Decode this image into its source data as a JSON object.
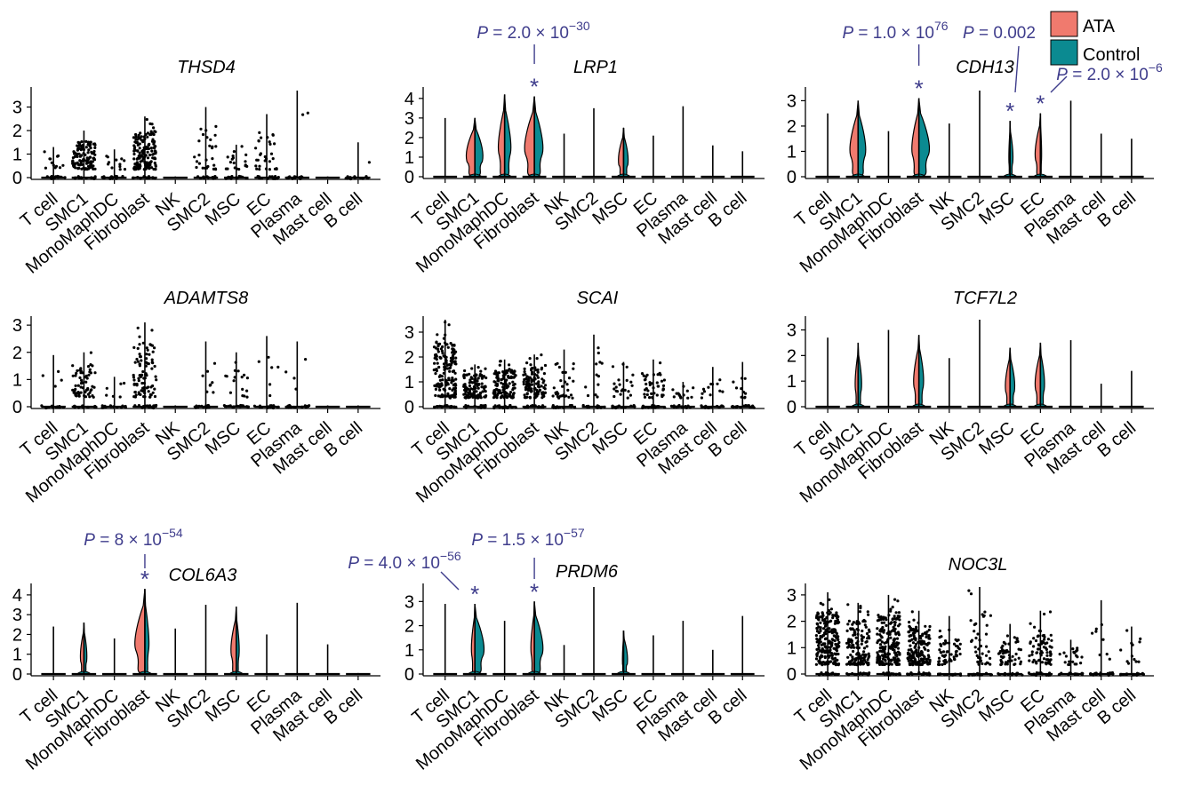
{
  "colors": {
    "ata": "#f07a6e",
    "control": "#0b8a91",
    "annotation": "#3f3d8c",
    "point": "#000000"
  },
  "legend": {
    "entries": [
      {
        "label": "ATA",
        "color": "#f07a6e"
      },
      {
        "label": "Control",
        "color": "#0b8a91"
      }
    ]
  },
  "chart_data": [
    {
      "type": "violin",
      "gene": "THSD4",
      "title": "THSD4",
      "categories": [
        "T cell",
        "SMC1",
        "MonoMaphDC",
        "Fibroblast",
        "NK",
        "SMC2",
        "MSC",
        "EC",
        "Plasma",
        "Mast cell",
        "B cell"
      ],
      "yticks": [
        0,
        1,
        2,
        3
      ],
      "ylim": [
        0,
        3.7
      ],
      "max": [
        1.3,
        2.0,
        1.2,
        2.6,
        0.05,
        3.0,
        1.4,
        2.7,
        3.7,
        0.05,
        1.5
      ],
      "ata_width": [
        0,
        0,
        0,
        0,
        0,
        0,
        0,
        0,
        0,
        0,
        0
      ],
      "control_width": [
        0,
        0,
        0,
        0,
        0,
        0,
        0,
        0,
        0,
        0,
        0
      ],
      "points": [
        12,
        120,
        12,
        150,
        0,
        28,
        18,
        30,
        2,
        0,
        1
      ],
      "annotations": []
    },
    {
      "type": "violin",
      "gene": "LRP1",
      "title": "LRP1",
      "categories": [
        "T cell",
        "SMC1",
        "MonoMaphDC",
        "Fibroblast",
        "NK",
        "SMC2",
        "MSC",
        "EC",
        "Plasma",
        "Mast cell",
        "B cell"
      ],
      "yticks": [
        0,
        1,
        2,
        3,
        4
      ],
      "ylim": [
        0,
        4.4
      ],
      "max": [
        3.0,
        3.0,
        4.2,
        4.1,
        2.2,
        3.5,
        2.5,
        2.1,
        3.6,
        1.6,
        1.3
      ],
      "ata_width": [
        0,
        0.75,
        0.55,
        0.85,
        0,
        0,
        0.45,
        0,
        0,
        0,
        0
      ],
      "control_width": [
        0,
        0.7,
        0.55,
        0.75,
        0,
        0,
        0.4,
        0,
        0,
        0,
        0
      ],
      "points": [
        0,
        0,
        0,
        0,
        0,
        0,
        0,
        0,
        0,
        0,
        0
      ],
      "annotations": [
        {
          "category": "Fibroblast",
          "italic_p": "P",
          "rest": " = 2.0 × 10",
          "exp": "−30"
        }
      ]
    },
    {
      "type": "violin",
      "gene": "CDH13",
      "title": "CDH13",
      "categories": [
        "T cell",
        "SMC1",
        "MonoMaphDC",
        "Fibroblast",
        "NK",
        "SMC2",
        "MSC",
        "EC",
        "Plasma",
        "Mast cell",
        "B cell"
      ],
      "yticks": [
        0,
        1,
        2,
        3
      ],
      "ylim": [
        0,
        3.4
      ],
      "max": [
        2.5,
        3.0,
        1.8,
        3.1,
        2.1,
        3.4,
        2.2,
        2.5,
        3.0,
        1.7,
        1.5
      ],
      "ata_width": [
        0,
        0.7,
        0,
        0.6,
        0,
        0,
        0.1,
        0.45,
        0,
        0,
        0
      ],
      "control_width": [
        0,
        0.65,
        0,
        0.9,
        0,
        0,
        0.25,
        0.1,
        0,
        0,
        0
      ],
      "points": [
        0,
        0,
        0,
        0,
        0,
        0,
        0,
        0,
        0,
        0,
        0
      ],
      "annotations": [
        {
          "category": "Fibroblast",
          "italic_p": "P",
          "rest": " = 1.0 × 10",
          "exp": "76"
        },
        {
          "category": "MSC",
          "italic_p": "P",
          "rest": " = 0.002",
          "exp": ""
        },
        {
          "category": "EC",
          "italic_p": "P",
          "rest": " = 2.0 × 10",
          "exp": "−6"
        }
      ]
    },
    {
      "type": "violin",
      "gene": "ADAMTS8",
      "title": "ADAMTS8",
      "categories": [
        "T cell",
        "SMC1",
        "MonoMaphDC",
        "Fibroblast",
        "NK",
        "SMC2",
        "MSC",
        "EC",
        "Plasma",
        "Mast cell",
        "B cell"
      ],
      "yticks": [
        0,
        1,
        2,
        3
      ],
      "ylim": [
        0,
        3.2
      ],
      "max": [
        1.9,
        2.0,
        1.1,
        3.1,
        0.05,
        2.4,
        2.0,
        2.6,
        2.4,
        0.05,
        0.05
      ],
      "ata_width": [
        0,
        0,
        0,
        0,
        0,
        0,
        0,
        0,
        0,
        0,
        0
      ],
      "control_width": [
        0,
        0,
        0,
        0,
        0,
        0,
        0,
        0,
        0,
        0,
        0
      ],
      "points": [
        4,
        60,
        6,
        90,
        0,
        8,
        16,
        6,
        4,
        0,
        0
      ],
      "annotations": []
    },
    {
      "type": "violin",
      "gene": "SCAI",
      "title": "SCAI",
      "categories": [
        "T cell",
        "SMC1",
        "MonoMaphDC",
        "Fibroblast",
        "NK",
        "SMC2",
        "MSC",
        "EC",
        "Plasma",
        "Mast cell",
        "B cell"
      ],
      "yticks": [
        0,
        1,
        2,
        3
      ],
      "ylim": [
        0,
        3.5
      ],
      "max": [
        3.5,
        1.7,
        1.9,
        2.1,
        2.3,
        2.9,
        1.8,
        1.9,
        1.0,
        1.6,
        1.8
      ],
      "ata_width": [
        0,
        0,
        0,
        0,
        0,
        0,
        0,
        0,
        0,
        0,
        0
      ],
      "control_width": [
        0,
        0,
        0,
        0,
        0,
        0,
        0,
        0,
        0,
        0,
        0
      ],
      "points": [
        160,
        110,
        130,
        110,
        30,
        12,
        22,
        40,
        14,
        12,
        10
      ],
      "annotations": []
    },
    {
      "type": "violin",
      "gene": "TCF7L2",
      "title": "TCF7L2",
      "categories": [
        "T cell",
        "SMC1",
        "MonoMaphDC",
        "Fibroblast",
        "NK",
        "SMC2",
        "MSC",
        "EC",
        "Plasma",
        "Mast cell",
        "B cell"
      ],
      "yticks": [
        0,
        1,
        2,
        3
      ],
      "ylim": [
        0,
        3.4
      ],
      "max": [
        2.7,
        2.5,
        3.0,
        2.8,
        1.9,
        3.4,
        2.3,
        2.5,
        2.6,
        0.9,
        1.4
      ],
      "ata_width": [
        0,
        0.25,
        0,
        0.45,
        0,
        0,
        0.4,
        0.45,
        0,
        0,
        0
      ],
      "control_width": [
        0,
        0.3,
        0,
        0.4,
        0,
        0,
        0.4,
        0.35,
        0,
        0,
        0
      ],
      "points": [
        0,
        0,
        0,
        0,
        0,
        0,
        0,
        0,
        0,
        0,
        0
      ],
      "annotations": []
    },
    {
      "type": "violin",
      "gene": "COL6A3",
      "title": "COL6A3",
      "categories": [
        "T cell",
        "SMC1",
        "MonoMaphDC",
        "Fibroblast",
        "NK",
        "SMC2",
        "MSC",
        "EC",
        "Plasma",
        "Mast cell",
        "B cell"
      ],
      "yticks": [
        0,
        1,
        2,
        3,
        4
      ],
      "ylim": [
        0,
        4.4
      ],
      "max": [
        2.4,
        2.6,
        1.8,
        4.3,
        2.3,
        3.5,
        3.4,
        2.0,
        3.6,
        1.5,
        0.05
      ],
      "ata_width": [
        0,
        0.3,
        0,
        0.85,
        0,
        0,
        0.45,
        0,
        0,
        0,
        0
      ],
      "control_width": [
        0,
        0.25,
        0,
        0.35,
        0,
        0,
        0.25,
        0,
        0,
        0,
        0
      ],
      "points": [
        0,
        0,
        0,
        0,
        0,
        0,
        0,
        0,
        0,
        0,
        0
      ],
      "annotations": [
        {
          "category": "Fibroblast",
          "italic_p": "P",
          "rest": " = 8 × 10",
          "exp": "−54"
        }
      ]
    },
    {
      "type": "violin",
      "gene": "PRDM6",
      "title": "PRDM6",
      "categories": [
        "T cell",
        "SMC1",
        "MonoMaphDC",
        "Fibroblast",
        "NK",
        "SMC2",
        "MSC",
        "EC",
        "Plasma",
        "Mast cell",
        "B cell"
      ],
      "yticks": [
        0,
        1,
        2,
        3
      ],
      "ylim": [
        0,
        3.6
      ],
      "max": [
        2.9,
        2.9,
        2.2,
        3.0,
        1.2,
        3.6,
        1.8,
        1.6,
        2.2,
        1.0,
        2.4
      ],
      "ata_width": [
        0,
        0.3,
        0,
        0.3,
        0,
        0,
        0.1,
        0,
        0,
        0,
        0
      ],
      "control_width": [
        0,
        0.8,
        0,
        0.75,
        0,
        0,
        0.35,
        0,
        0,
        0,
        0
      ],
      "points": [
        0,
        0,
        0,
        0,
        0,
        0,
        0,
        0,
        0,
        0,
        0
      ],
      "annotations": [
        {
          "category": "SMC1",
          "italic_p": "P",
          "rest": " = 4.0 × 10",
          "exp": "−56"
        },
        {
          "category": "Fibroblast",
          "italic_p": "P",
          "rest": " = 1.5 × 10",
          "exp": "−57"
        }
      ]
    },
    {
      "type": "violin",
      "gene": "NOC3L",
      "title": "NOC3L",
      "categories": [
        "T cell",
        "SMC1",
        "MonoMaphDC",
        "Fibroblast",
        "NK",
        "SMC2",
        "MSC",
        "EC",
        "Plasma",
        "Mast cell",
        "B cell"
      ],
      "yticks": [
        0,
        1,
        2,
        3
      ],
      "ylim": [
        0,
        3.3
      ],
      "max": [
        3.1,
        2.7,
        3.0,
        2.4,
        2.2,
        3.3,
        1.9,
        2.4,
        1.3,
        2.8,
        1.8
      ],
      "ata_width": [
        0,
        0,
        0,
        0,
        0,
        0,
        0,
        0,
        0,
        0,
        0
      ],
      "control_width": [
        0,
        0,
        0,
        0,
        0,
        0,
        0,
        0,
        0,
        0,
        0
      ],
      "points": [
        220,
        150,
        200,
        160,
        60,
        40,
        50,
        70,
        20,
        8,
        12
      ],
      "annotations": []
    }
  ]
}
